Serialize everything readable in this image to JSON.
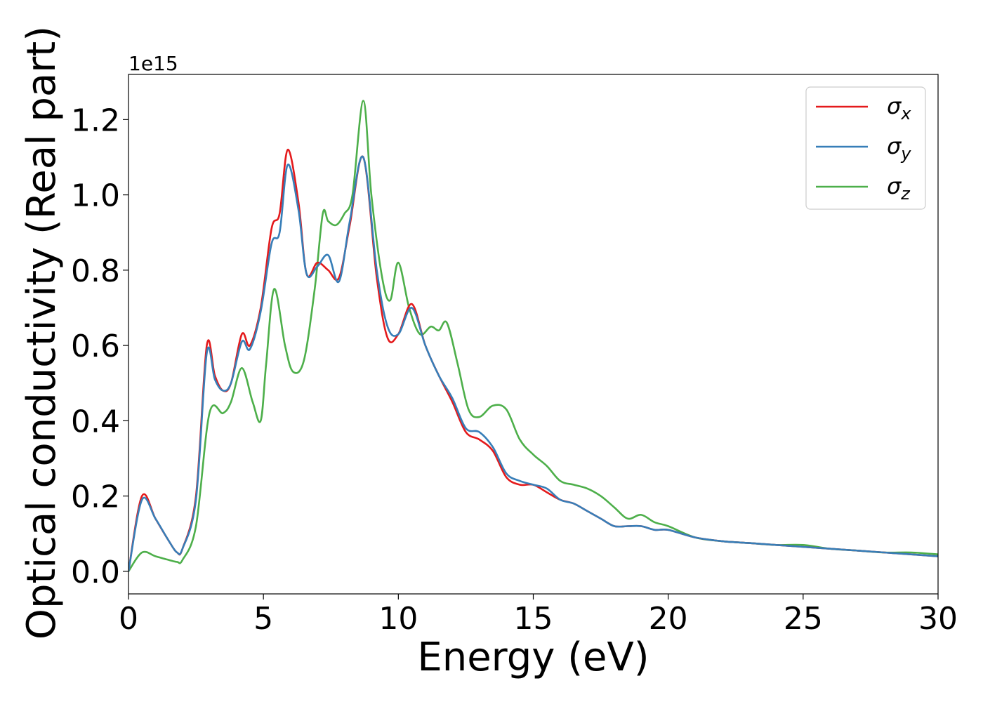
{
  "chart_data": {
    "type": "line",
    "xlabel": "Energy (eV)",
    "ylabel": "Optical conductivity (Real part)",
    "y_offset_label": "1e15",
    "xlim": [
      0,
      30
    ],
    "ylim": [
      -0.06,
      1.32
    ],
    "y_scale_factor": 1000000000000000.0,
    "xticks": [
      0,
      5,
      10,
      15,
      20,
      25,
      30
    ],
    "xtick_labels": [
      "0",
      "5",
      "10",
      "15",
      "20",
      "25",
      "30"
    ],
    "yticks": [
      0.0,
      0.2,
      0.4,
      0.6,
      0.8,
      1.0,
      1.2
    ],
    "ytick_labels": [
      "0.0",
      "0.2",
      "0.4",
      "0.6",
      "0.8",
      "1.0",
      "1.2"
    ],
    "grid": false,
    "legend": {
      "placement": "top-right"
    },
    "series": [
      {
        "name": "σx",
        "label_base": "σ",
        "label_sub": "x",
        "color": "#e41a1c",
        "x": [
          0,
          0.5,
          1.0,
          1.5,
          1.8,
          2.0,
          2.5,
          2.9,
          3.2,
          3.5,
          3.8,
          4.2,
          4.5,
          4.9,
          5.3,
          5.6,
          5.9,
          6.3,
          6.6,
          7.0,
          7.4,
          7.8,
          8.2,
          8.7,
          9.2,
          9.6,
          10.0,
          10.5,
          11.0,
          11.5,
          12.0,
          12.5,
          13.0,
          13.5,
          14.0,
          14.5,
          15.0,
          15.5,
          16.0,
          16.5,
          17.0,
          17.5,
          18.0,
          18.5,
          19.0,
          19.5,
          20.0,
          21.0,
          22.0,
          23.0,
          24.0,
          25.0,
          26.0,
          27.0,
          28.0,
          29.0,
          30.0
        ],
        "y": [
          0.0,
          0.2,
          0.14,
          0.08,
          0.05,
          0.06,
          0.2,
          0.6,
          0.52,
          0.48,
          0.5,
          0.63,
          0.6,
          0.7,
          0.91,
          0.95,
          1.12,
          0.98,
          0.79,
          0.82,
          0.8,
          0.78,
          0.92,
          1.1,
          0.78,
          0.62,
          0.63,
          0.71,
          0.6,
          0.52,
          0.45,
          0.37,
          0.35,
          0.32,
          0.25,
          0.23,
          0.23,
          0.21,
          0.19,
          0.18,
          0.16,
          0.14,
          0.12,
          0.12,
          0.12,
          0.11,
          0.11,
          0.09,
          0.08,
          0.075,
          0.07,
          0.065,
          0.06,
          0.055,
          0.05,
          0.045,
          0.04
        ]
      },
      {
        "name": "σy",
        "label_base": "σ",
        "label_sub": "y",
        "color": "#377eb8",
        "x": [
          0,
          0.5,
          1.0,
          1.5,
          1.8,
          2.0,
          2.5,
          2.9,
          3.2,
          3.5,
          3.8,
          4.2,
          4.5,
          4.9,
          5.3,
          5.6,
          5.9,
          6.3,
          6.6,
          7.0,
          7.4,
          7.8,
          8.2,
          8.7,
          9.2,
          9.6,
          10.0,
          10.5,
          11.0,
          11.5,
          12.0,
          12.5,
          13.0,
          13.5,
          14.0,
          14.5,
          15.0,
          15.5,
          16.0,
          16.5,
          17.0,
          17.5,
          18.0,
          18.5,
          19.0,
          19.5,
          20.0,
          21.0,
          22.0,
          23.0,
          24.0,
          25.0,
          26.0,
          27.0,
          28.0,
          29.0,
          30.0
        ],
        "y": [
          0.0,
          0.19,
          0.14,
          0.08,
          0.05,
          0.06,
          0.19,
          0.58,
          0.51,
          0.48,
          0.5,
          0.61,
          0.59,
          0.69,
          0.87,
          0.9,
          1.08,
          0.96,
          0.79,
          0.81,
          0.84,
          0.77,
          0.93,
          1.1,
          0.8,
          0.65,
          0.63,
          0.7,
          0.6,
          0.52,
          0.46,
          0.38,
          0.37,
          0.33,
          0.26,
          0.24,
          0.23,
          0.22,
          0.19,
          0.18,
          0.16,
          0.14,
          0.12,
          0.12,
          0.12,
          0.11,
          0.11,
          0.09,
          0.08,
          0.075,
          0.07,
          0.065,
          0.06,
          0.055,
          0.05,
          0.045,
          0.04
        ]
      },
      {
        "name": "σz",
        "label_base": "σ",
        "label_sub": "z",
        "color": "#4daf4a",
        "x": [
          0,
          0.5,
          1.0,
          1.5,
          1.8,
          2.0,
          2.5,
          3.0,
          3.5,
          3.8,
          4.2,
          4.6,
          4.9,
          5.1,
          5.4,
          5.8,
          6.1,
          6.5,
          6.9,
          7.2,
          7.4,
          7.7,
          8.0,
          8.3,
          8.7,
          9.0,
          9.4,
          9.7,
          10.0,
          10.4,
          10.8,
          11.2,
          11.5,
          11.8,
          12.2,
          12.6,
          13.0,
          13.5,
          14.0,
          14.5,
          15.0,
          15.5,
          16.0,
          16.5,
          17.0,
          17.5,
          18.0,
          18.5,
          19.0,
          19.5,
          20.0,
          21.0,
          22.0,
          23.0,
          24.0,
          25.0,
          26.0,
          27.0,
          28.0,
          29.0,
          30.0
        ],
        "y": [
          0.0,
          0.05,
          0.04,
          0.03,
          0.025,
          0.03,
          0.12,
          0.42,
          0.42,
          0.45,
          0.54,
          0.45,
          0.4,
          0.55,
          0.75,
          0.6,
          0.53,
          0.56,
          0.75,
          0.95,
          0.93,
          0.92,
          0.95,
          1.0,
          1.25,
          1.0,
          0.78,
          0.72,
          0.82,
          0.7,
          0.63,
          0.65,
          0.64,
          0.66,
          0.55,
          0.43,
          0.41,
          0.44,
          0.43,
          0.35,
          0.31,
          0.28,
          0.24,
          0.23,
          0.22,
          0.2,
          0.17,
          0.14,
          0.15,
          0.13,
          0.12,
          0.09,
          0.08,
          0.075,
          0.07,
          0.07,
          0.06,
          0.055,
          0.05,
          0.05,
          0.045
        ]
      }
    ]
  }
}
